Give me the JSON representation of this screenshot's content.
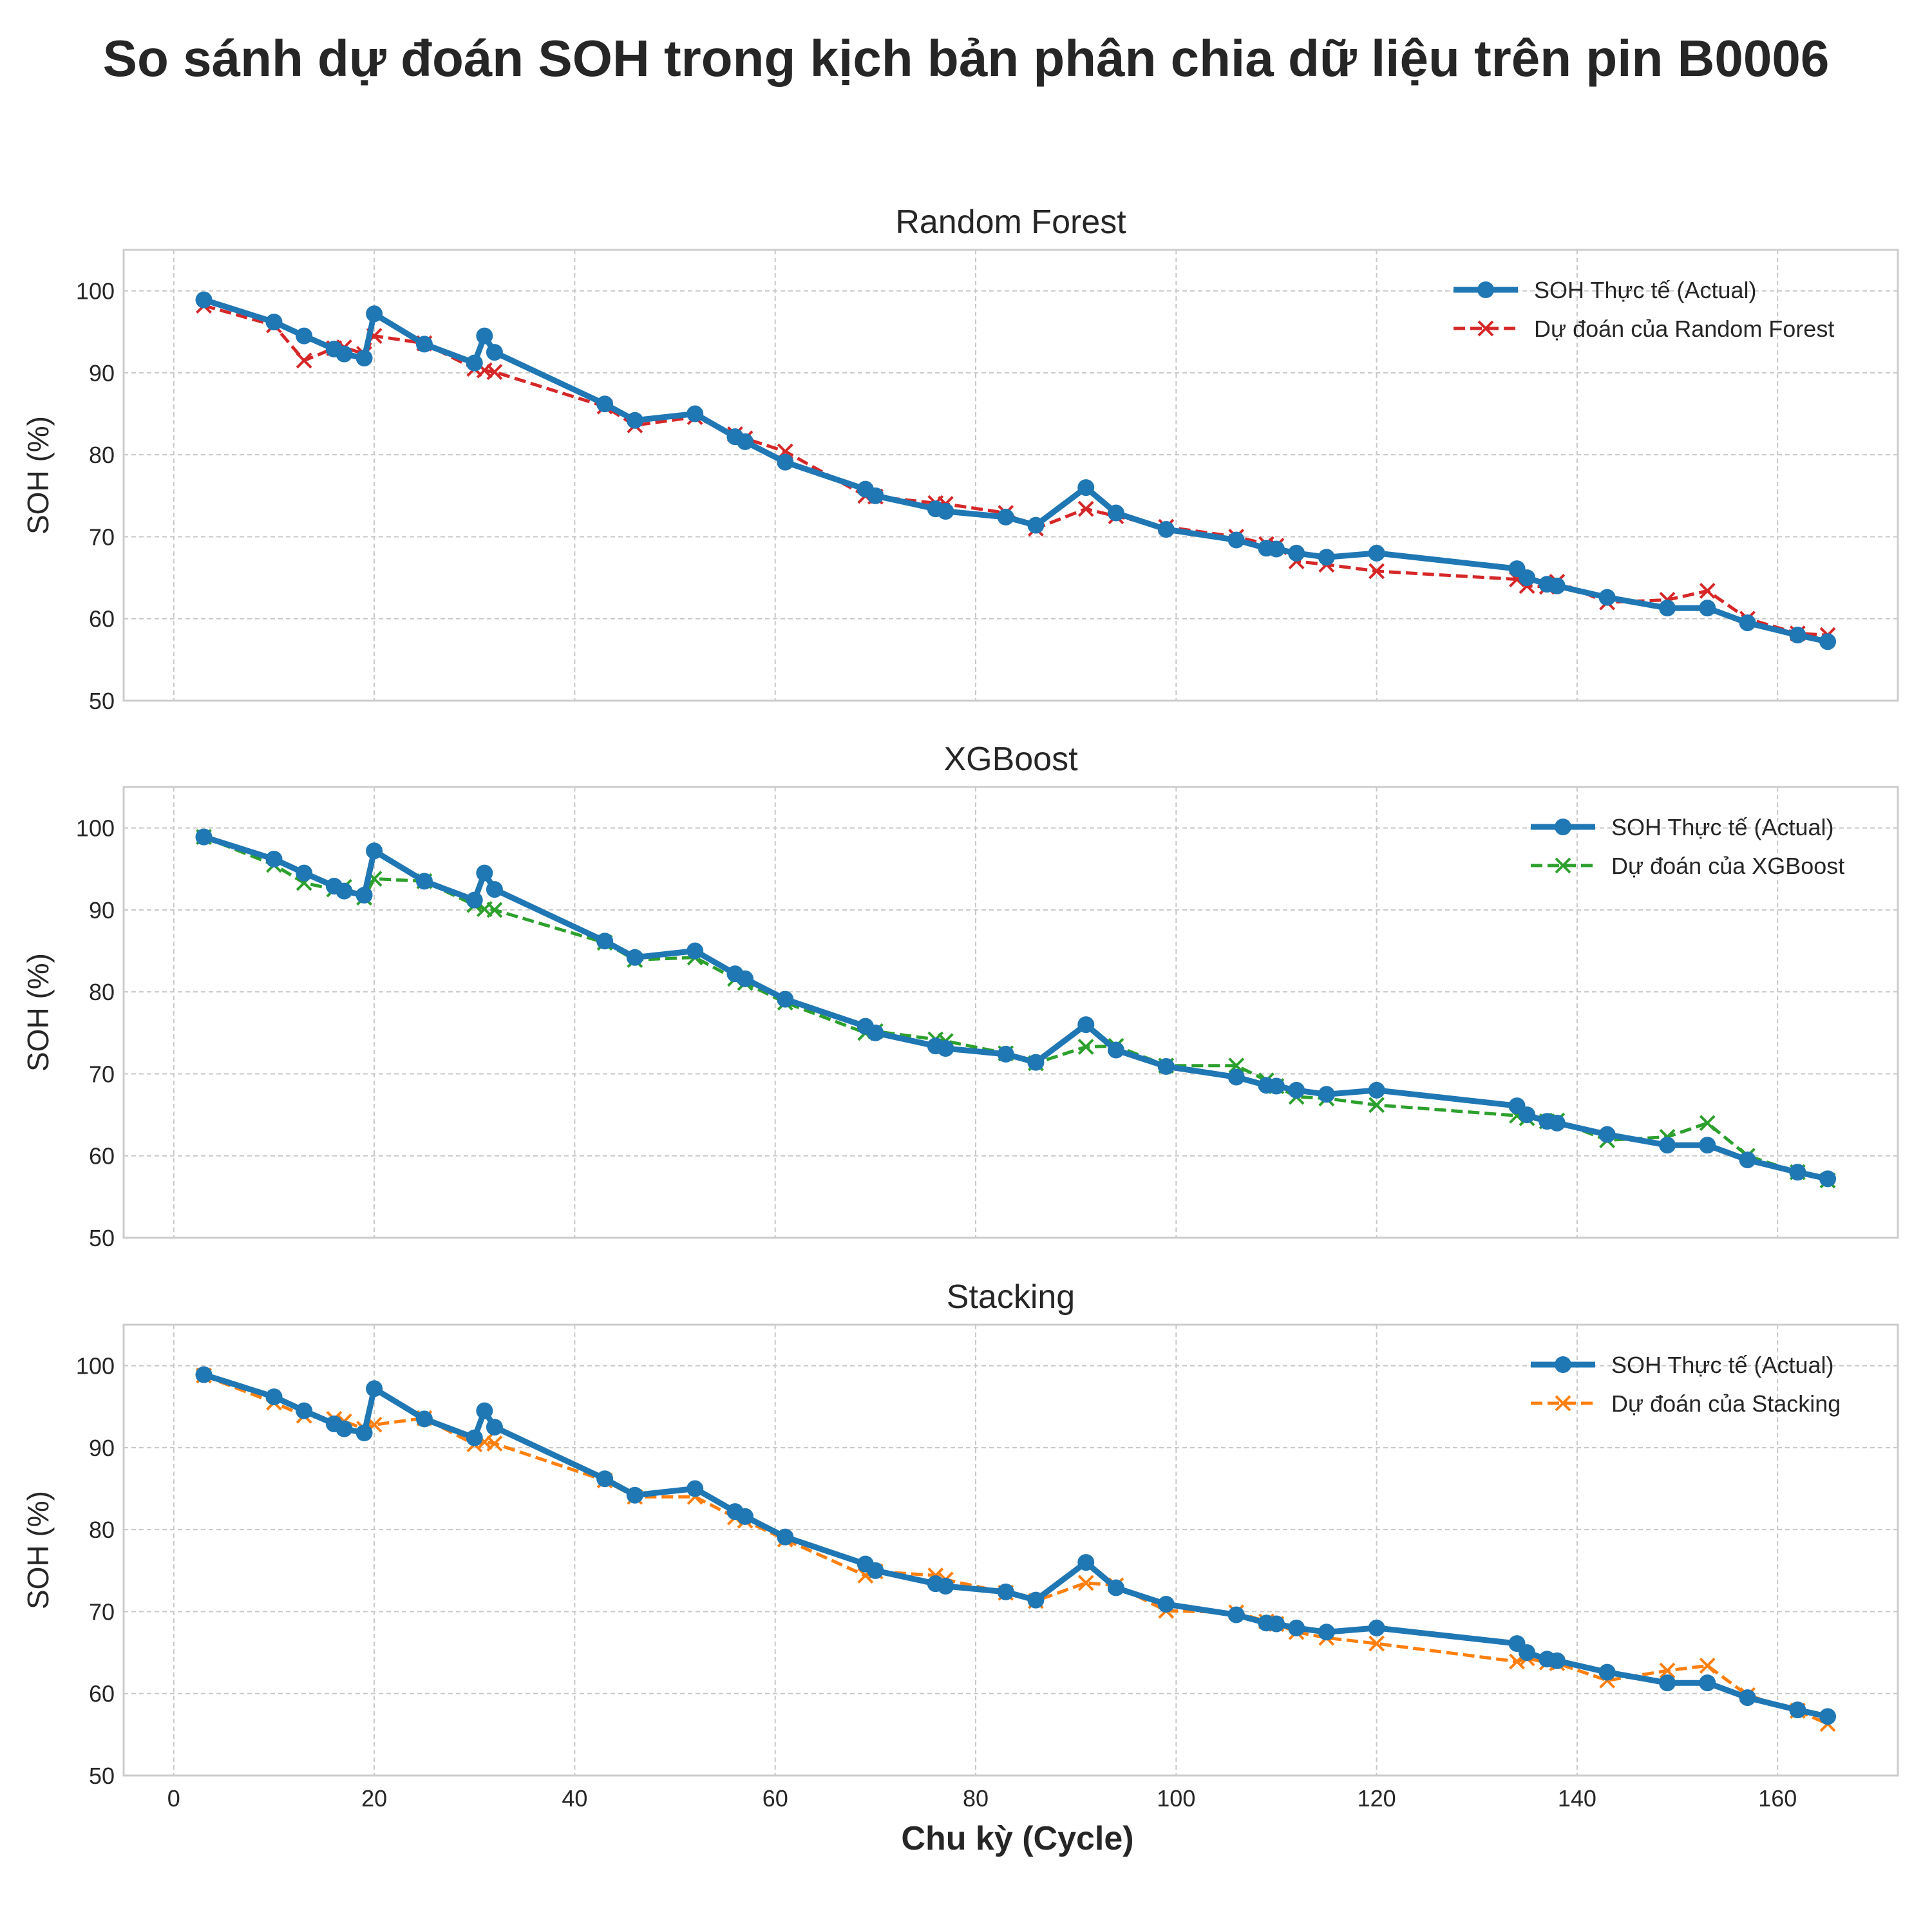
{
  "figure": {
    "title": "So sánh dự đoán SOH trong kịch bản phân chia dữ liệu trên pin B0006",
    "xlabel": "Chu kỳ (Cycle)"
  },
  "colors": {
    "actual": "#1f77b4",
    "rf": "#d62728",
    "xgb": "#2ca02c",
    "stack": "#ff7f0e"
  },
  "chart_data": [
    {
      "type": "line",
      "title": "Random Forest",
      "ylabel": "SOH (%)",
      "xlim": [
        -5,
        172
      ],
      "ylim": [
        50,
        105
      ],
      "xticks": [
        0,
        20,
        40,
        60,
        80,
        100,
        120,
        140,
        160
      ],
      "yticks": [
        50,
        60,
        70,
        80,
        90,
        100
      ],
      "grid": true,
      "legend_position": "top-right",
      "x": [
        3,
        10,
        13,
        16,
        17,
        19,
        20,
        25,
        30,
        31,
        32,
        43,
        46,
        52,
        56,
        57,
        61,
        69,
        70,
        76,
        77,
        83,
        86,
        91,
        94,
        99,
        106,
        109,
        110,
        112,
        115,
        120,
        134,
        135,
        137,
        138,
        143,
        149,
        153,
        157,
        162,
        165
      ],
      "series": [
        {
          "name": "SOH Thực tế (Actual)",
          "color": "#1f77b4",
          "style": "solid",
          "marker": "circle",
          "values": [
            98.9,
            96.2,
            94.5,
            92.9,
            92.3,
            91.8,
            97.2,
            93.5,
            91.2,
            94.5,
            92.5,
            86.2,
            84.2,
            85.0,
            82.2,
            81.6,
            79.1,
            75.8,
            75.0,
            73.4,
            73.1,
            72.4,
            71.4,
            76.0,
            72.9,
            70.9,
            69.6,
            68.6,
            68.5,
            68.0,
            67.5,
            68.0,
            66.1,
            65.0,
            64.2,
            64.0,
            62.6,
            61.3,
            61.3,
            59.5,
            58.0,
            57.2
          ]
        },
        {
          "name": "Dự đoán của Random Forest",
          "color": "#d62728",
          "style": "dashed",
          "marker": "x",
          "values": [
            98.2,
            95.8,
            91.5,
            93.0,
            93.1,
            92.3,
            94.5,
            93.6,
            90.5,
            90.3,
            90.1,
            85.9,
            83.6,
            84.6,
            82.5,
            82.0,
            80.4,
            75.0,
            74.9,
            74.1,
            74.0,
            72.9,
            71.0,
            73.4,
            72.5,
            71.2,
            70.0,
            69.1,
            68.9,
            67.0,
            66.6,
            65.8,
            64.8,
            64.0,
            63.9,
            64.5,
            62.0,
            62.3,
            63.4,
            60.0,
            58.2,
            58.0
          ]
        }
      ]
    },
    {
      "type": "line",
      "title": "XGBoost",
      "ylabel": "SOH (%)",
      "xlim": [
        -5,
        172
      ],
      "ylim": [
        50,
        105
      ],
      "xticks": [
        0,
        20,
        40,
        60,
        80,
        100,
        120,
        140,
        160
      ],
      "yticks": [
        50,
        60,
        70,
        80,
        90,
        100
      ],
      "grid": true,
      "legend_position": "top-right",
      "x": [
        3,
        10,
        13,
        16,
        17,
        19,
        20,
        25,
        30,
        31,
        32,
        43,
        46,
        52,
        56,
        57,
        61,
        69,
        70,
        76,
        77,
        83,
        86,
        91,
        94,
        99,
        106,
        109,
        110,
        112,
        115,
        120,
        134,
        135,
        137,
        138,
        143,
        149,
        153,
        157,
        162,
        165
      ],
      "series": [
        {
          "name": "SOH Thực tế (Actual)",
          "color": "#1f77b4",
          "style": "solid",
          "marker": "circle",
          "values": [
            98.9,
            96.2,
            94.5,
            92.9,
            92.3,
            91.8,
            97.2,
            93.5,
            91.2,
            94.5,
            92.5,
            86.2,
            84.2,
            85.0,
            82.2,
            81.6,
            79.1,
            75.8,
            75.0,
            73.4,
            73.1,
            72.4,
            71.4,
            76.0,
            72.9,
            70.9,
            69.6,
            68.6,
            68.5,
            68.0,
            67.5,
            68.0,
            66.1,
            65.0,
            64.2,
            64.0,
            62.6,
            61.3,
            61.3,
            59.5,
            58.0,
            57.2
          ]
        },
        {
          "name": "Dự đoán của XGBoost",
          "color": "#2ca02c",
          "style": "dashed",
          "marker": "x",
          "values": [
            98.9,
            95.5,
            93.3,
            92.5,
            92.8,
            91.5,
            93.8,
            93.5,
            90.6,
            90.1,
            90.0,
            86.0,
            83.9,
            84.2,
            81.6,
            81.1,
            78.7,
            75.0,
            75.2,
            74.2,
            74.0,
            72.5,
            71.3,
            73.3,
            73.4,
            71.0,
            71.0,
            69.2,
            68.5,
            67.2,
            67.0,
            66.2,
            64.9,
            64.6,
            64.2,
            64.3,
            61.9,
            62.3,
            64.0,
            60.0,
            58.0,
            57.0
          ]
        }
      ]
    },
    {
      "type": "line",
      "title": "Stacking",
      "ylabel": "SOH (%)",
      "xlim": [
        -5,
        172
      ],
      "ylim": [
        50,
        105
      ],
      "xticks": [
        0,
        20,
        40,
        60,
        80,
        100,
        120,
        140,
        160
      ],
      "yticks": [
        50,
        60,
        70,
        80,
        90,
        100
      ],
      "grid": true,
      "legend_position": "top-right",
      "x": [
        3,
        10,
        13,
        16,
        17,
        19,
        20,
        25,
        30,
        31,
        32,
        43,
        46,
        52,
        56,
        57,
        61,
        69,
        70,
        76,
        77,
        83,
        86,
        91,
        94,
        99,
        106,
        109,
        110,
        112,
        115,
        120,
        134,
        135,
        137,
        138,
        143,
        149,
        153,
        157,
        162,
        165
      ],
      "series": [
        {
          "name": "SOH Thực tế (Actual)",
          "color": "#1f77b4",
          "style": "solid",
          "marker": "circle",
          "values": [
            98.9,
            96.2,
            94.5,
            92.9,
            92.3,
            91.8,
            97.2,
            93.5,
            91.2,
            94.5,
            92.5,
            86.2,
            84.2,
            85.0,
            82.2,
            81.6,
            79.1,
            75.8,
            75.0,
            73.4,
            73.1,
            72.4,
            71.4,
            76.0,
            72.9,
            70.9,
            69.6,
            68.6,
            68.5,
            68.0,
            67.5,
            68.0,
            66.1,
            65.0,
            64.2,
            64.0,
            62.6,
            61.3,
            61.3,
            59.5,
            58.0,
            57.2
          ]
        },
        {
          "name": "Dự đoán của Stacking",
          "color": "#ff7f0e",
          "style": "dashed",
          "marker": "x",
          "values": [
            98.8,
            95.5,
            93.9,
            93.5,
            93.2,
            92.3,
            92.8,
            93.6,
            90.4,
            90.7,
            90.5,
            86.0,
            84.0,
            84.0,
            81.5,
            81.1,
            78.8,
            74.4,
            74.9,
            74.4,
            73.9,
            72.3,
            71.3,
            73.5,
            73.2,
            70.1,
            69.9,
            68.8,
            68.5,
            67.5,
            66.8,
            66.1,
            63.9,
            64.3,
            63.8,
            63.7,
            61.6,
            62.8,
            63.4,
            59.8,
            57.9,
            56.3
          ]
        }
      ]
    }
  ]
}
